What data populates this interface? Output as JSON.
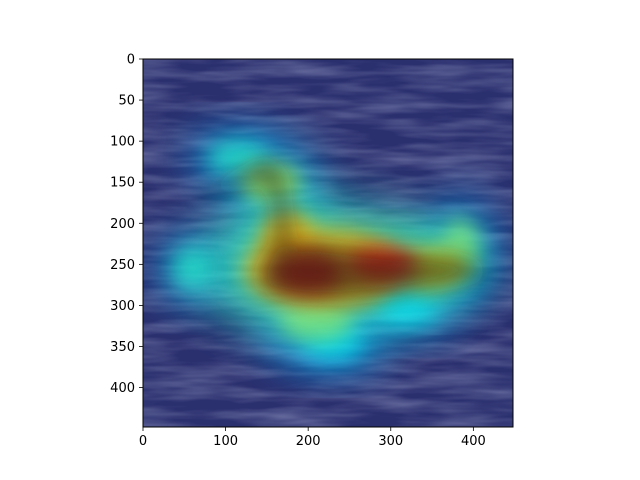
{
  "chart_data": {
    "type": "heatmap",
    "title": "",
    "xlabel": "",
    "ylabel": "",
    "xlim": [
      0,
      448
    ],
    "ylim": [
      448,
      0
    ],
    "x_ticks": [
      0,
      100,
      200,
      300,
      400
    ],
    "y_ticks": [
      0,
      50,
      100,
      150,
      200,
      250,
      300,
      350,
      400
    ],
    "grid": false,
    "colormap": "jet",
    "underlay": "photo of a swimming water bird on rippled dark water",
    "activation_regions": [
      {
        "cx": 220,
        "cy": 255,
        "rx": 120,
        "ry": 60,
        "intensity": 0.75
      },
      {
        "cx": 200,
        "cy": 260,
        "rx": 55,
        "ry": 32,
        "intensity": 1.0
      },
      {
        "cx": 290,
        "cy": 250,
        "rx": 55,
        "ry": 25,
        "intensity": 0.95
      },
      {
        "cx": 175,
        "cy": 215,
        "rx": 40,
        "ry": 40,
        "intensity": 0.75
      },
      {
        "cx": 155,
        "cy": 150,
        "rx": 45,
        "ry": 30,
        "intensity": 0.6
      },
      {
        "cx": 350,
        "cy": 255,
        "rx": 50,
        "ry": 30,
        "intensity": 0.7
      },
      {
        "cx": 385,
        "cy": 230,
        "rx": 30,
        "ry": 45,
        "intensity": 0.55
      },
      {
        "cx": 210,
        "cy": 320,
        "rx": 55,
        "ry": 30,
        "intensity": 0.55
      },
      {
        "cx": 230,
        "cy": 345,
        "rx": 45,
        "ry": 25,
        "intensity": 0.4
      },
      {
        "cx": 60,
        "cy": 255,
        "rx": 30,
        "ry": 30,
        "intensity": 0.45
      },
      {
        "cx": 115,
        "cy": 120,
        "rx": 45,
        "ry": 25,
        "intensity": 0.45
      },
      {
        "cx": 320,
        "cy": 305,
        "rx": 45,
        "ry": 22,
        "intensity": 0.4
      }
    ]
  }
}
